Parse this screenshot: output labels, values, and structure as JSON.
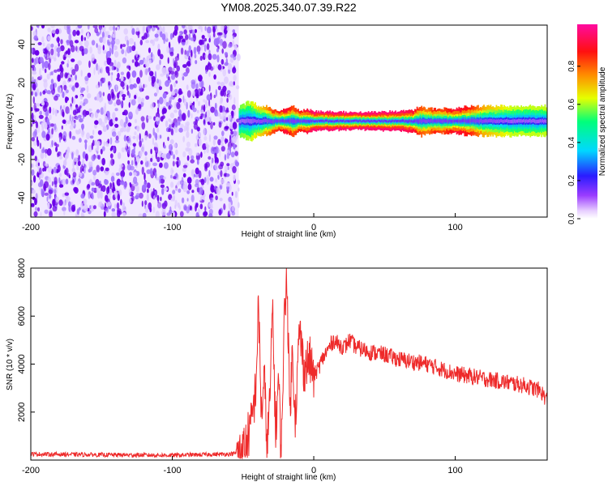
{
  "title": "YM08.2025.340.07.39.R22",
  "colors": {
    "snr_line": "#ee2a2a",
    "speckle_dark": "#6a00e8",
    "speckle_light": "#dcc8ff",
    "background": "#ffffff",
    "frame": "#000000"
  },
  "chart_data": [
    {
      "type": "heatmap",
      "xlabel": "Height of straight line (km)",
      "ylabel": "Frequency (Hz)",
      "xlim": [
        -200,
        165
      ],
      "ylim": [
        -50,
        50
      ],
      "xticks": [
        -200,
        -100,
        0,
        100
      ],
      "yticks": [
        -40,
        -20,
        0,
        20,
        40
      ],
      "colorbar": {
        "label": "Normalized spectral amplitude",
        "range": [
          0,
          1
        ],
        "ticks": [
          "0.0",
          "0.2",
          "0.4",
          "0.6",
          "0.8"
        ],
        "colormap": "rainbow (white→violet→blue→cyan→green→yellow→red→magenta)",
        "position": "right"
      },
      "regions": [
        {
          "x_range": [
            -200,
            -53
          ],
          "description_value": "broadband noise, low amplitude across ±50 Hz"
        },
        {
          "x_range": [
            -53,
            165
          ],
          "center_frequency": 0,
          "peak_amplitude": 0.9
        }
      ],
      "ridge": {
        "x": [
          -53,
          -45,
          -40,
          -35,
          -30,
          -25,
          -20,
          -15,
          -10,
          -5,
          0,
          20,
          40,
          60,
          70,
          75,
          80,
          85,
          90,
          100,
          110,
          120,
          140,
          165
        ],
        "halfwidth_hz": [
          3,
          4,
          3,
          3,
          2.5,
          2,
          2.5,
          3,
          2,
          2.5,
          2,
          1.8,
          1.8,
          2,
          2.2,
          3,
          2.5,
          2.5,
          2.5,
          2.5,
          3,
          3,
          3,
          3
        ],
        "peak_amplitude": [
          0.55,
          0.6,
          0.65,
          0.7,
          0.8,
          0.85,
          0.9,
          0.8,
          0.85,
          0.9,
          0.95,
          0.95,
          0.95,
          0.95,
          0.9,
          0.8,
          0.75,
          0.85,
          0.8,
          0.9,
          0.85,
          0.7,
          0.6,
          0.6
        ]
      },
      "grid": false
    },
    {
      "type": "line",
      "xlabel": "Height of straight line (km)",
      "ylabel": "SNR (10 * v/v)",
      "xlim": [
        -200,
        165
      ],
      "ylim": [
        0,
        8000
      ],
      "xticks": [
        -200,
        -100,
        0,
        100
      ],
      "yticks": [
        2000,
        4000,
        6000,
        8000
      ],
      "series": [
        {
          "x": [
            -200,
            -150,
            -100,
            -60,
            -52,
            -48,
            -44,
            -41,
            -39,
            -37,
            -35,
            -33,
            -31,
            -29,
            -27,
            -25,
            -23,
            -21,
            -19,
            -17,
            -15,
            -13,
            -10,
            -7,
            -3,
            0,
            3,
            6,
            10,
            14,
            18,
            22,
            25,
            30,
            40,
            50,
            60,
            70,
            80,
            90,
            100,
            110,
            120,
            130,
            140,
            150,
            160,
            165
          ],
          "y": [
            250,
            220,
            200,
            250,
            300,
            700,
            1500,
            3000,
            6500,
            1800,
            3500,
            500,
            2500,
            6500,
            1000,
            3500,
            300,
            5500,
            8000,
            2000,
            4500,
            1800,
            5500,
            3800,
            4200,
            3500,
            3800,
            4200,
            4600,
            5000,
            4800,
            4700,
            5000,
            4700,
            4500,
            4400,
            4200,
            4100,
            4000,
            3800,
            3600,
            3500,
            3400,
            3300,
            3200,
            3100,
            2900,
            2500
          ],
          "noise_amplitude": 350
        }
      ],
      "grid": false
    }
  ]
}
